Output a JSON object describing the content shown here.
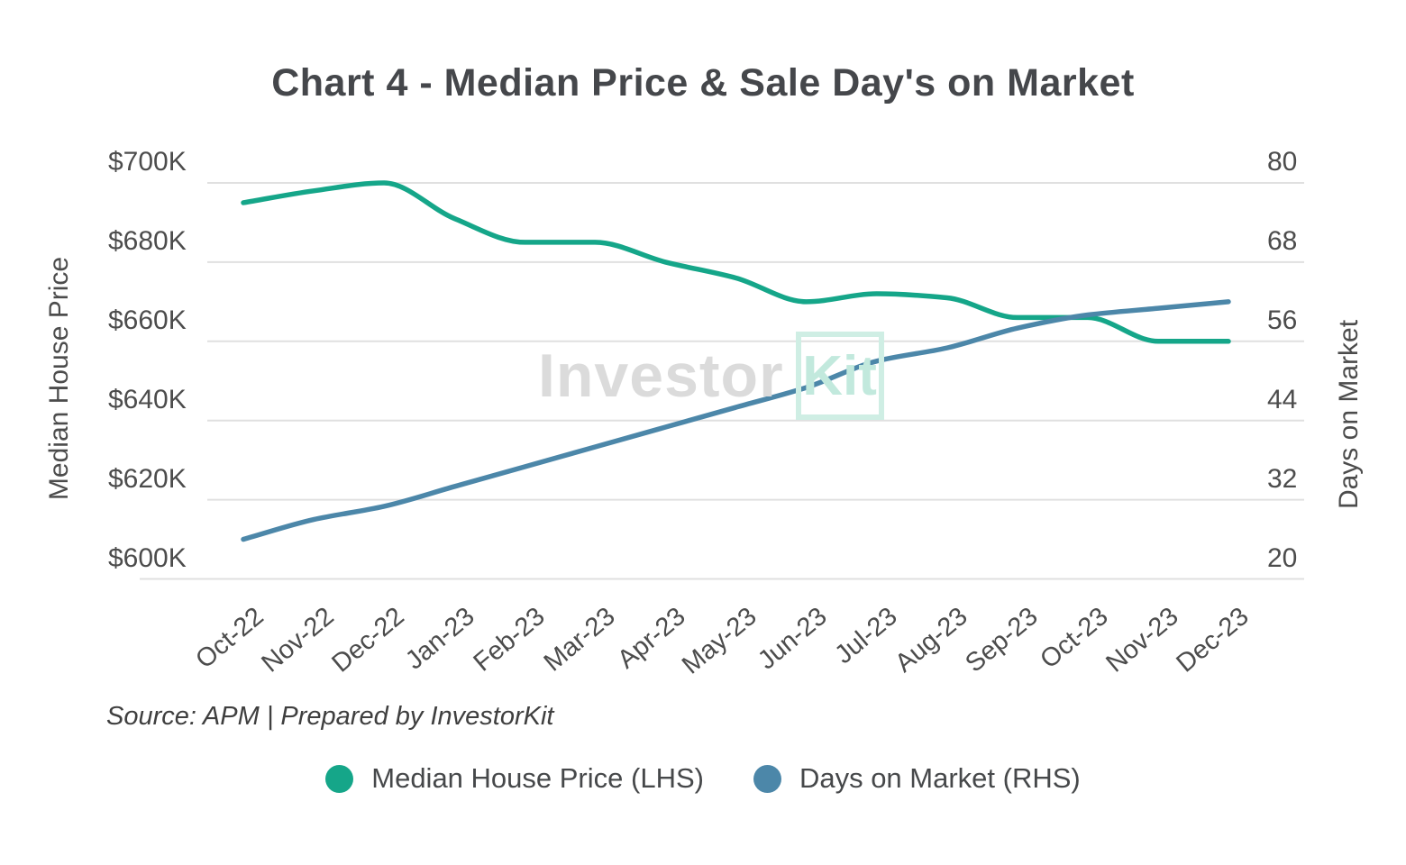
{
  "title": "Chart 4 - Median Price & Sale Day's on Market",
  "watermark": {
    "part1": "Investor",
    "part2": "Kit"
  },
  "source_note": "Source: APM | Prepared by InvestorKit",
  "legend": [
    {
      "label": "Median House Price (LHS)",
      "color": "#15A689"
    },
    {
      "label": "Days on Market (RHS)",
      "color": "#4C87A9"
    }
  ],
  "chart_data": {
    "type": "line",
    "curve": "smooth",
    "grid": true,
    "legend_position": "bottom",
    "categories": [
      "Oct-22",
      "Nov-22",
      "Dec-22",
      "Jan-23",
      "Feb-23",
      "Mar-23",
      "Apr-23",
      "May-23",
      "Jun-23",
      "Jul-23",
      "Aug-23",
      "Sep-23",
      "Oct-23",
      "Nov-23",
      "Dec-23"
    ],
    "series": [
      {
        "name": "Median House Price (LHS)",
        "axis": "left",
        "color": "#15A689",
        "unit": "thousand_dollars",
        "values": [
          695,
          698,
          700,
          691,
          685,
          685,
          680,
          676,
          670,
          672,
          671,
          666,
          666,
          660,
          660
        ]
      },
      {
        "name": "Days on Market (RHS)",
        "axis": "right",
        "color": "#4C87A9",
        "unit": "days",
        "values": [
          26,
          29,
          31,
          34,
          37,
          40,
          43,
          46,
          49,
          53,
          55,
          58,
          60,
          61,
          62
        ]
      }
    ],
    "left_axis": {
      "label": "Median House Price",
      "min": 600,
      "max": 700,
      "ticks": [
        {
          "label": "$700K",
          "value": 700
        },
        {
          "label": "$680K",
          "value": 680
        },
        {
          "label": "$660K",
          "value": 660
        },
        {
          "label": "$640K",
          "value": 640
        },
        {
          "label": "$620K",
          "value": 620
        },
        {
          "label": "$600K",
          "value": 600
        }
      ]
    },
    "right_axis": {
      "label": "Days on Market",
      "min": 20,
      "max": 80,
      "ticks": [
        {
          "label": "80",
          "value": 80
        },
        {
          "label": "68",
          "value": 68
        },
        {
          "label": "56",
          "value": 56
        },
        {
          "label": "44",
          "value": 44
        },
        {
          "label": "32",
          "value": 32
        },
        {
          "label": "20",
          "value": 20
        }
      ]
    },
    "colors": {
      "gridline": "#e0e0e0",
      "text": "#4c4c4c",
      "title": "#45474b"
    }
  }
}
